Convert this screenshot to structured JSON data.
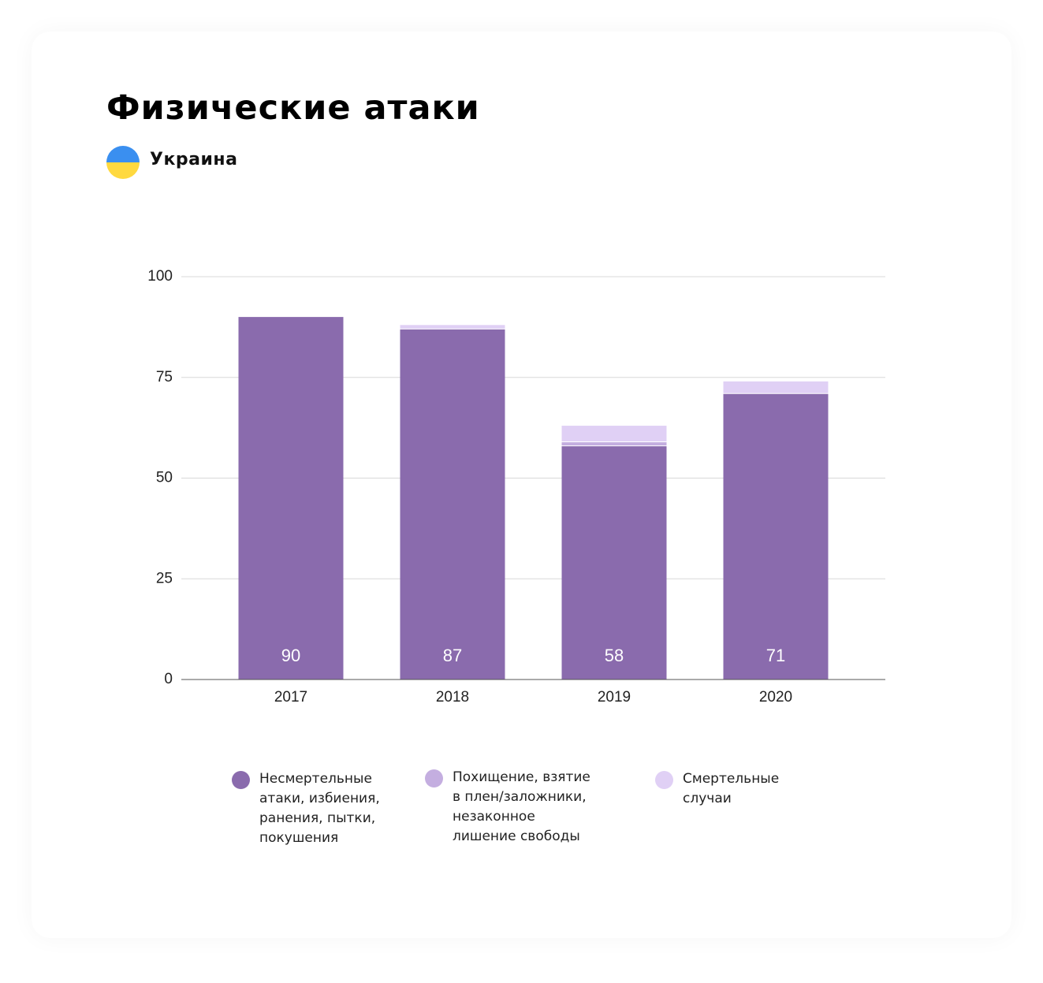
{
  "chart_data": {
    "type": "bar",
    "stacked": true,
    "title": "Физические атаки",
    "subtitle": "Украина",
    "categories": [
      "2017",
      "2018",
      "2019",
      "2020"
    ],
    "series": [
      {
        "name": "Несмертельные атаки, избиения, ранения, пытки, покушения",
        "color": "#8a6bad",
        "values": [
          90,
          87,
          58,
          71
        ],
        "data_labels": true
      },
      {
        "name": "Похищение, взятие в плен/заложники, незаконное лишение свободы",
        "color": "#c4aee0",
        "values": [
          0,
          0,
          1,
          0
        ]
      },
      {
        "name": "Смертельные случаи",
        "color": "#e0d0f5",
        "values": [
          0,
          1,
          4,
          3
        ]
      }
    ],
    "ylim": [
      0,
      100
    ],
    "yticks": [
      0,
      25,
      50,
      75,
      100
    ],
    "grid": true
  }
}
